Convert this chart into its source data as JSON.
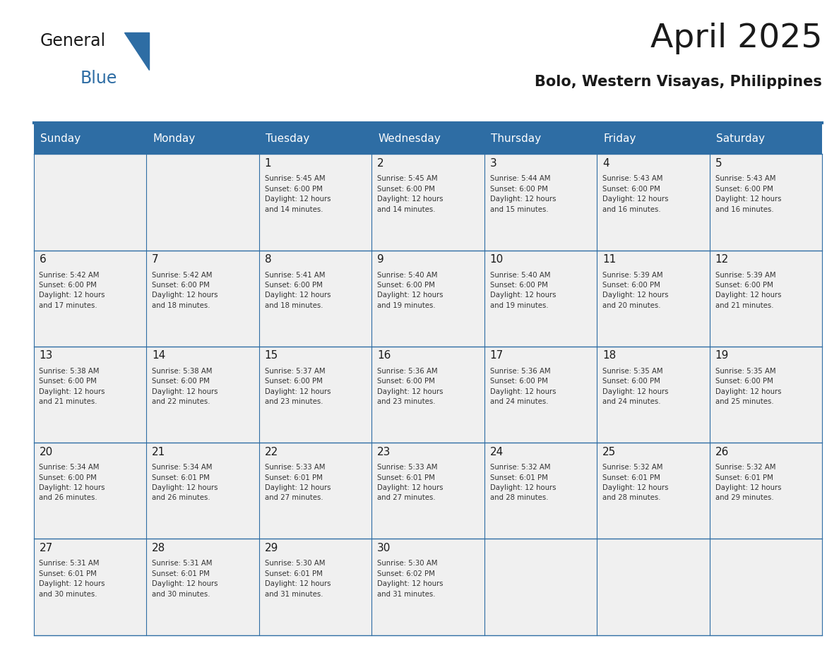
{
  "title": "April 2025",
  "subtitle": "Bolo, Western Visayas, Philippines",
  "header_bg": "#2E6DA4",
  "header_text_color": "#FFFFFF",
  "cell_bg_light": "#F0F0F0",
  "border_color": "#2E6DA4",
  "day_names": [
    "Sunday",
    "Monday",
    "Tuesday",
    "Wednesday",
    "Thursday",
    "Friday",
    "Saturday"
  ],
  "title_color": "#1a1a1a",
  "subtitle_color": "#1a1a1a",
  "text_color": "#333333",
  "day_number_color": "#1a1a1a",
  "calendar": [
    [
      {
        "day": "",
        "info": ""
      },
      {
        "day": "",
        "info": ""
      },
      {
        "day": "1",
        "info": "Sunrise: 5:45 AM\nSunset: 6:00 PM\nDaylight: 12 hours\nand 14 minutes."
      },
      {
        "day": "2",
        "info": "Sunrise: 5:45 AM\nSunset: 6:00 PM\nDaylight: 12 hours\nand 14 minutes."
      },
      {
        "day": "3",
        "info": "Sunrise: 5:44 AM\nSunset: 6:00 PM\nDaylight: 12 hours\nand 15 minutes."
      },
      {
        "day": "4",
        "info": "Sunrise: 5:43 AM\nSunset: 6:00 PM\nDaylight: 12 hours\nand 16 minutes."
      },
      {
        "day": "5",
        "info": "Sunrise: 5:43 AM\nSunset: 6:00 PM\nDaylight: 12 hours\nand 16 minutes."
      }
    ],
    [
      {
        "day": "6",
        "info": "Sunrise: 5:42 AM\nSunset: 6:00 PM\nDaylight: 12 hours\nand 17 minutes."
      },
      {
        "day": "7",
        "info": "Sunrise: 5:42 AM\nSunset: 6:00 PM\nDaylight: 12 hours\nand 18 minutes."
      },
      {
        "day": "8",
        "info": "Sunrise: 5:41 AM\nSunset: 6:00 PM\nDaylight: 12 hours\nand 18 minutes."
      },
      {
        "day": "9",
        "info": "Sunrise: 5:40 AM\nSunset: 6:00 PM\nDaylight: 12 hours\nand 19 minutes."
      },
      {
        "day": "10",
        "info": "Sunrise: 5:40 AM\nSunset: 6:00 PM\nDaylight: 12 hours\nand 19 minutes."
      },
      {
        "day": "11",
        "info": "Sunrise: 5:39 AM\nSunset: 6:00 PM\nDaylight: 12 hours\nand 20 minutes."
      },
      {
        "day": "12",
        "info": "Sunrise: 5:39 AM\nSunset: 6:00 PM\nDaylight: 12 hours\nand 21 minutes."
      }
    ],
    [
      {
        "day": "13",
        "info": "Sunrise: 5:38 AM\nSunset: 6:00 PM\nDaylight: 12 hours\nand 21 minutes."
      },
      {
        "day": "14",
        "info": "Sunrise: 5:38 AM\nSunset: 6:00 PM\nDaylight: 12 hours\nand 22 minutes."
      },
      {
        "day": "15",
        "info": "Sunrise: 5:37 AM\nSunset: 6:00 PM\nDaylight: 12 hours\nand 23 minutes."
      },
      {
        "day": "16",
        "info": "Sunrise: 5:36 AM\nSunset: 6:00 PM\nDaylight: 12 hours\nand 23 minutes."
      },
      {
        "day": "17",
        "info": "Sunrise: 5:36 AM\nSunset: 6:00 PM\nDaylight: 12 hours\nand 24 minutes."
      },
      {
        "day": "18",
        "info": "Sunrise: 5:35 AM\nSunset: 6:00 PM\nDaylight: 12 hours\nand 24 minutes."
      },
      {
        "day": "19",
        "info": "Sunrise: 5:35 AM\nSunset: 6:00 PM\nDaylight: 12 hours\nand 25 minutes."
      }
    ],
    [
      {
        "day": "20",
        "info": "Sunrise: 5:34 AM\nSunset: 6:00 PM\nDaylight: 12 hours\nand 26 minutes."
      },
      {
        "day": "21",
        "info": "Sunrise: 5:34 AM\nSunset: 6:01 PM\nDaylight: 12 hours\nand 26 minutes."
      },
      {
        "day": "22",
        "info": "Sunrise: 5:33 AM\nSunset: 6:01 PM\nDaylight: 12 hours\nand 27 minutes."
      },
      {
        "day": "23",
        "info": "Sunrise: 5:33 AM\nSunset: 6:01 PM\nDaylight: 12 hours\nand 27 minutes."
      },
      {
        "day": "24",
        "info": "Sunrise: 5:32 AM\nSunset: 6:01 PM\nDaylight: 12 hours\nand 28 minutes."
      },
      {
        "day": "25",
        "info": "Sunrise: 5:32 AM\nSunset: 6:01 PM\nDaylight: 12 hours\nand 28 minutes."
      },
      {
        "day": "26",
        "info": "Sunrise: 5:32 AM\nSunset: 6:01 PM\nDaylight: 12 hours\nand 29 minutes."
      }
    ],
    [
      {
        "day": "27",
        "info": "Sunrise: 5:31 AM\nSunset: 6:01 PM\nDaylight: 12 hours\nand 30 minutes."
      },
      {
        "day": "28",
        "info": "Sunrise: 5:31 AM\nSunset: 6:01 PM\nDaylight: 12 hours\nand 30 minutes."
      },
      {
        "day": "29",
        "info": "Sunrise: 5:30 AM\nSunset: 6:01 PM\nDaylight: 12 hours\nand 31 minutes."
      },
      {
        "day": "30",
        "info": "Sunrise: 5:30 AM\nSunset: 6:02 PM\nDaylight: 12 hours\nand 31 minutes."
      },
      {
        "day": "",
        "info": ""
      },
      {
        "day": "",
        "info": ""
      },
      {
        "day": "",
        "info": ""
      }
    ]
  ],
  "logo_general_color": "#1a1a1a",
  "logo_blue_color": "#2E6DA4",
  "logo_triangle_color": "#2E6DA4"
}
